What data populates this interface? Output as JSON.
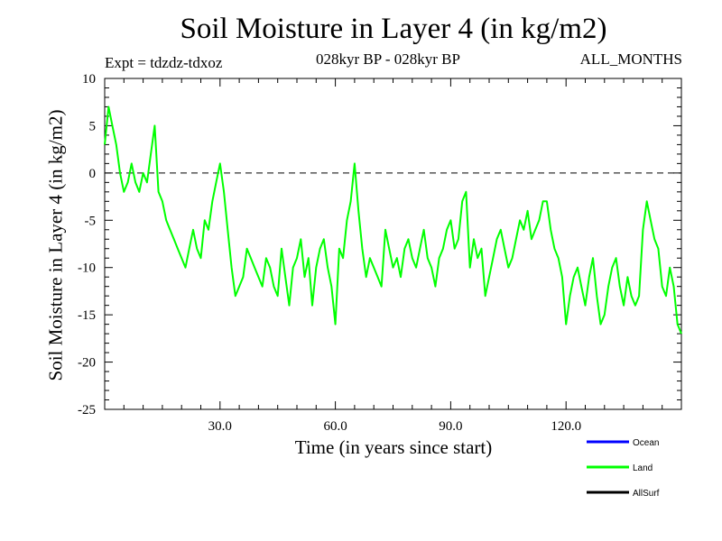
{
  "chart_data": {
    "type": "line",
    "title": "Soil Moisture in Layer 4 (in kg/m2)",
    "subtitle_left": "Expt = tdzdz-tdxoz",
    "subtitle_center": "028kyr BP - 028kyr BP",
    "subtitle_right": "ALL_MONTHS",
    "xlabel": "Time (in years since start)",
    "ylabel": "Soil Moisture in Layer 4 (in kg/m2)",
    "xlim": [
      0,
      150
    ],
    "ylim": [
      -25,
      10
    ],
    "xticks": [
      30,
      60,
      90,
      120
    ],
    "xtick_labels": [
      "30.0",
      "60.0",
      "90.0",
      "120.0"
    ],
    "yticks": [
      10,
      5,
      0,
      -5,
      -10,
      -15,
      -20,
      -25
    ],
    "ytick_labels": [
      "10",
      "5",
      "0",
      "-5",
      "-10",
      "-15",
      "-20",
      "-25"
    ],
    "reference_line": 0,
    "legend_position": "bottom-right",
    "legend": [
      {
        "name": "Ocean",
        "color": "#0000ff"
      },
      {
        "name": "Land",
        "color": "#00ff00"
      },
      {
        "name": "AllSurf",
        "color": "#000000"
      }
    ],
    "series": [
      {
        "name": "Land",
        "color": "#00ff00",
        "x": [
          0,
          1,
          2,
          3,
          4,
          5,
          6,
          7,
          8,
          9,
          10,
          11,
          12,
          13,
          14,
          15,
          16,
          17,
          18,
          19,
          20,
          21,
          22,
          23,
          24,
          25,
          26,
          27,
          28,
          29,
          30,
          31,
          32,
          33,
          34,
          35,
          36,
          37,
          38,
          39,
          40,
          41,
          42,
          43,
          44,
          45,
          46,
          47,
          48,
          49,
          50,
          51,
          52,
          53,
          54,
          55,
          56,
          57,
          58,
          59,
          60,
          61,
          62,
          63,
          64,
          65,
          66,
          67,
          68,
          69,
          70,
          71,
          72,
          73,
          74,
          75,
          76,
          77,
          78,
          79,
          80,
          81,
          82,
          83,
          84,
          85,
          86,
          87,
          88,
          89,
          90,
          91,
          92,
          93,
          94,
          95,
          96,
          97,
          98,
          99,
          100,
          101,
          102,
          103,
          104,
          105,
          106,
          107,
          108,
          109,
          110,
          111,
          112,
          113,
          114,
          115,
          116,
          117,
          118,
          119,
          120,
          121,
          122,
          123,
          124,
          125,
          126,
          127,
          128,
          129,
          130,
          131,
          132,
          133,
          134,
          135,
          136,
          137,
          138,
          139,
          140,
          141,
          142,
          143,
          144,
          145,
          146,
          147,
          148,
          149,
          150
        ],
        "values": [
          3,
          7,
          5,
          3,
          0,
          -2,
          -1,
          1,
          -1,
          -2,
          0,
          -1,
          2,
          5,
          -2,
          -3,
          -5,
          -6,
          -7,
          -8,
          -9,
          -10,
          -8,
          -6,
          -8,
          -9,
          -5,
          -6,
          -3,
          -1,
          1,
          -2,
          -6,
          -10,
          -13,
          -12,
          -11,
          -8,
          -9,
          -10,
          -11,
          -12,
          -9,
          -10,
          -12,
          -13,
          -8,
          -11,
          -14,
          -10,
          -9,
          -7,
          -11,
          -9,
          -14,
          -10,
          -8,
          -7,
          -10,
          -12,
          -16,
          -8,
          -9,
          -5,
          -3,
          1,
          -4,
          -8,
          -11,
          -9,
          -10,
          -11,
          -12,
          -6,
          -8,
          -10,
          -9,
          -11,
          -8,
          -7,
          -9,
          -10,
          -8,
          -6,
          -9,
          -10,
          -12,
          -9,
          -8,
          -6,
          -5,
          -8,
          -7,
          -3,
          -2,
          -10,
          -7,
          -9,
          -8,
          -13,
          -11,
          -9,
          -7,
          -6,
          -8,
          -10,
          -9,
          -7,
          -5,
          -6,
          -4,
          -7,
          -6,
          -5,
          -3,
          -3,
          -6,
          -8,
          -9,
          -11,
          -16,
          -13,
          -11,
          -10,
          -12,
          -14,
          -11,
          -9,
          -13,
          -16,
          -15,
          -12,
          -10,
          -9,
          -12,
          -14,
          -11,
          -13,
          -14,
          -13,
          -6,
          -3,
          -5,
          -7,
          -8,
          -12,
          -13,
          -10,
          -12,
          -16,
          -17
        ]
      }
    ]
  }
}
